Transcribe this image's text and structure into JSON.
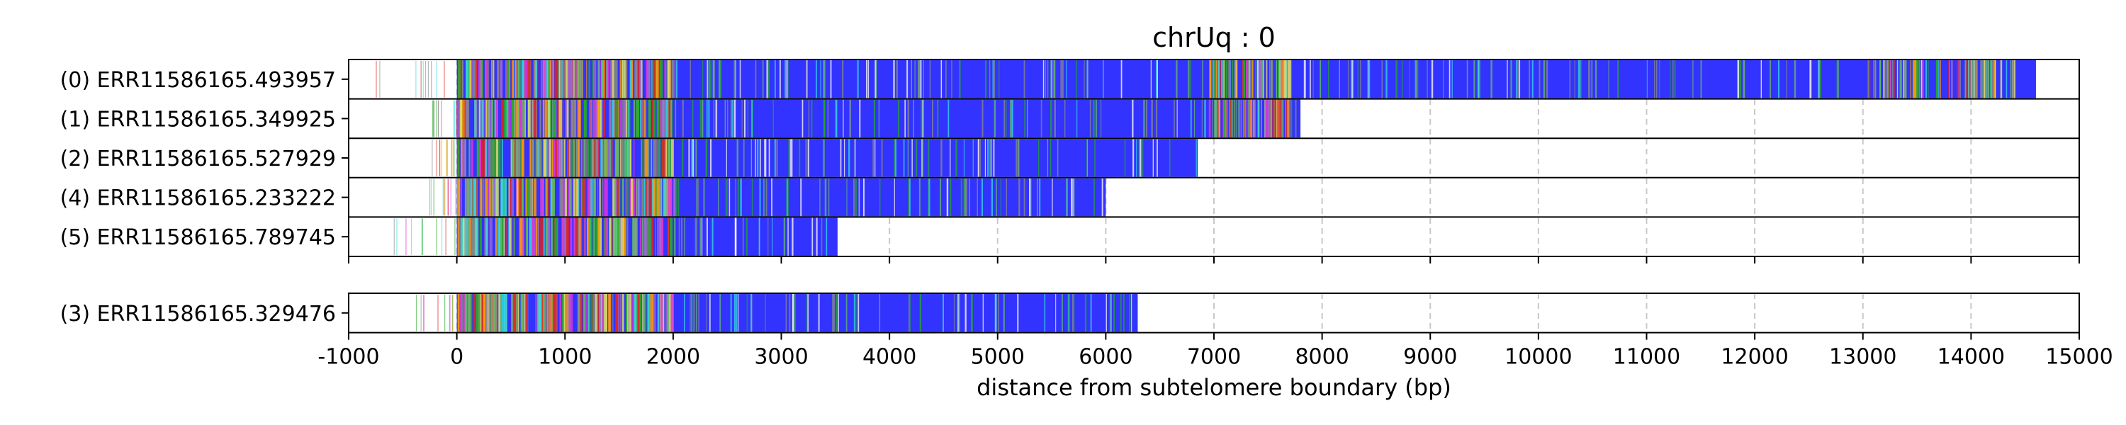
{
  "chart_data": {
    "type": "bar",
    "orientation": "horizontal",
    "title": "chrUq : 0",
    "xlabel": "distance from subtelomere boundary (bp)",
    "xlim": [
      -1000,
      15000
    ],
    "x_ticks": [
      -1000,
      0,
      1000,
      2000,
      3000,
      4000,
      5000,
      6000,
      7000,
      8000,
      9000,
      10000,
      11000,
      12000,
      13000,
      14000,
      15000
    ],
    "grid": "vertical dashed",
    "colors": {
      "fill": "#3333ff",
      "green": "#22aa22",
      "cyan": "#33dddd",
      "magenta": "#dd33dd",
      "orange": "#ff9900",
      "yellow": "#dddd66",
      "gray": "#888888",
      "red": "#dd2222"
    },
    "panels": [
      {
        "rows": [
          {
            "label": "(0) ERR11586165.493957",
            "start": -900,
            "end": 14600
          },
          {
            "label": "(1) ERR11586165.349925",
            "start": -250,
            "end": 7800
          },
          {
            "label": "(2) ERR11586165.527929",
            "start": -250,
            "end": 6850
          },
          {
            "label": "(4) ERR11586165.233222",
            "start": -250,
            "end": 6000
          },
          {
            "label": "(5) ERR11586165.789745",
            "start": -600,
            "end": 3520
          }
        ]
      },
      {
        "rows": [
          {
            "label": "(3) ERR11586165.329476",
            "start": -450,
            "end": 6300
          }
        ]
      }
    ]
  }
}
